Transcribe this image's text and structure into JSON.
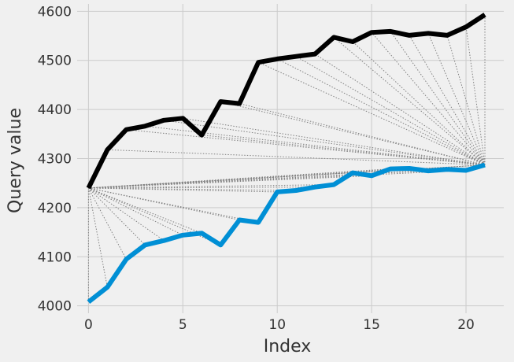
{
  "chart_data": {
    "type": "line",
    "title": "",
    "xlabel": "Index",
    "ylabel": "Query value",
    "xlim": [
      -0.6,
      22.0
    ],
    "ylim": [
      3985,
      4615
    ],
    "grid": true,
    "legend": "none",
    "x_ticks": [
      0,
      5,
      10,
      15,
      20
    ],
    "x_tick_labels": [
      "0",
      "5",
      "10",
      "15",
      "20"
    ],
    "y_ticks": [
      4000,
      4100,
      4200,
      4300,
      4400,
      4500,
      4600
    ],
    "y_tick_labels": [
      "4000",
      "4100",
      "4200",
      "4300",
      "4400",
      "4500",
      "4600"
    ],
    "x": [
      0,
      1,
      2,
      3,
      4,
      5,
      6,
      7,
      8,
      9,
      10,
      11,
      12,
      13,
      14,
      15,
      16,
      17,
      18,
      19,
      20,
      21
    ],
    "series": [
      {
        "color": "#000000",
        "values": [
          4240,
          4318,
          4359,
          4366,
          4378,
          4382,
          4348,
          4416,
          4412,
          4496,
          4503,
          4508,
          4513,
          4547,
          4538,
          4557,
          4559,
          4551,
          4555,
          4551,
          4568,
          4593
        ]
      },
      {
        "color": "#008fd5",
        "values": [
          4008,
          4038,
          4095,
          4124,
          4133,
          4144,
          4148,
          4124,
          4175,
          4170,
          4232,
          4235,
          4242,
          4247,
          4271,
          4265,
          4279,
          4280,
          4275,
          4278,
          4276,
          4287
        ]
      }
    ],
    "connectors": {
      "color": "#808080",
      "style": "dotted",
      "from_first_point_of": 0,
      "from_last_point_of": 1
    }
  }
}
